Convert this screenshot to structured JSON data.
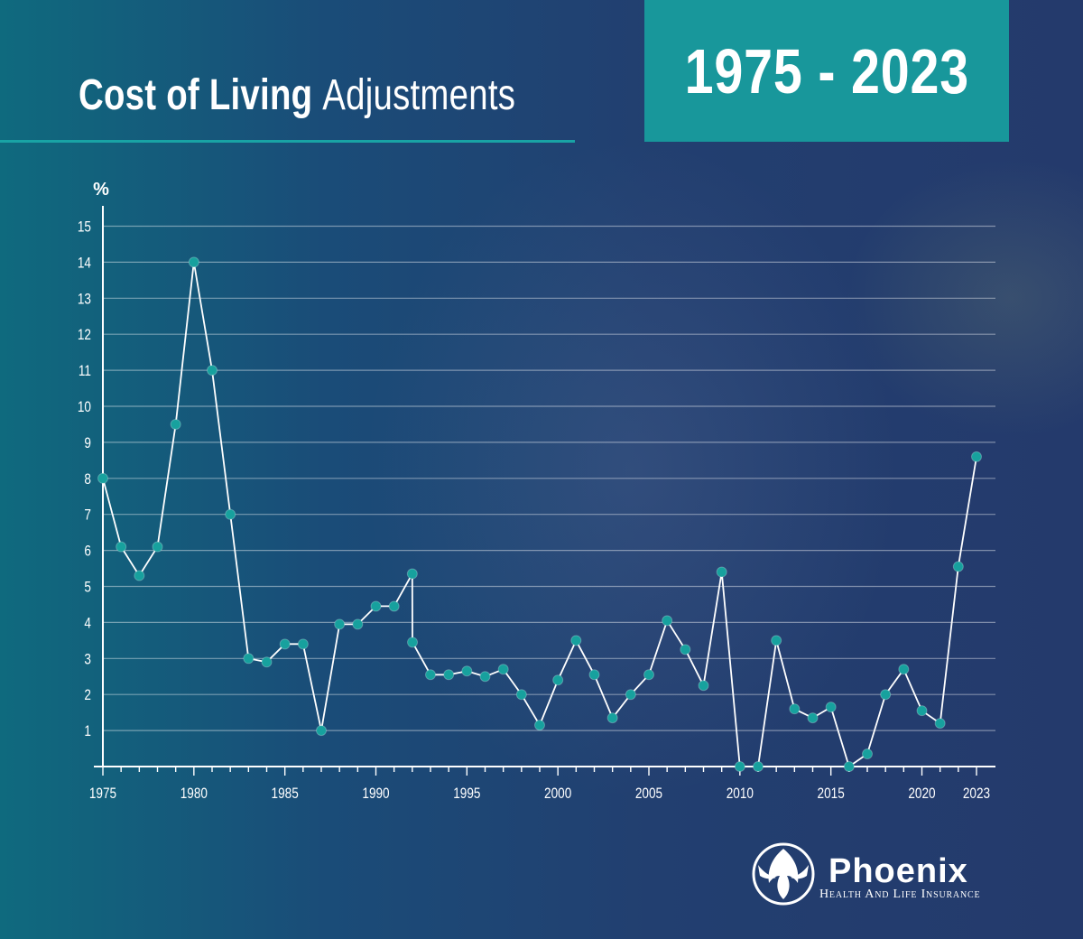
{
  "header": {
    "title_bold": "Cost of Living",
    "title_rest": "Adjustments",
    "range": "1975 - 2023"
  },
  "brand": {
    "name": "Phoenix",
    "tagline": "Health And Life Insurance",
    "icon": "phoenix-bird-icon"
  },
  "colors": {
    "accent": "#19a3a5",
    "marker": "#17a19e",
    "line": "#ffffff"
  },
  "chart_data": {
    "type": "line",
    "title": "Cost of Living Adjustments",
    "ylabel": "%",
    "xlabel": "",
    "grid": true,
    "xlim": [
      1975,
      2023
    ],
    "ylim": [
      0,
      15
    ],
    "yticks": [
      1,
      2,
      3,
      4,
      5,
      6,
      7,
      8,
      9,
      10,
      11,
      12,
      13,
      14,
      15
    ],
    "xtick_labels": [
      1975,
      1980,
      1985,
      1990,
      1995,
      2000,
      2005,
      2010,
      2015,
      2020,
      2023
    ],
    "series": [
      {
        "x": [
          1975,
          1976,
          1977,
          1978,
          1979,
          1980,
          1981,
          1982,
          1983,
          1984,
          1985,
          1986,
          1987,
          1988,
          1989,
          1990,
          1991,
          1992,
          1992.01,
          1993,
          1994,
          1995,
          1996,
          1997,
          1998,
          1999,
          2000,
          2001,
          2002,
          2003,
          2004,
          2005,
          2006,
          2007,
          2008,
          2009,
          2010,
          2011,
          2012,
          2013,
          2014,
          2015,
          2016,
          2017,
          2018,
          2019,
          2020,
          2021,
          2022,
          2023
        ],
        "y": [
          8.0,
          6.1,
          5.3,
          6.1,
          9.5,
          14.0,
          11.0,
          7.0,
          3.0,
          2.9,
          3.4,
          3.4,
          1.0,
          3.95,
          3.95,
          4.45,
          4.45,
          5.35,
          3.45,
          2.55,
          2.55,
          2.65,
          2.5,
          2.7,
          2.0,
          1.15,
          2.4,
          3.5,
          2.55,
          1.35,
          2.0,
          2.55,
          4.05,
          3.25,
          2.25,
          5.4,
          0.0,
          0.0,
          3.5,
          1.6,
          1.35,
          1.65,
          0.0,
          0.35,
          2.0,
          2.7,
          1.55,
          1.2,
          5.55,
          8.6
        ]
      }
    ]
  }
}
